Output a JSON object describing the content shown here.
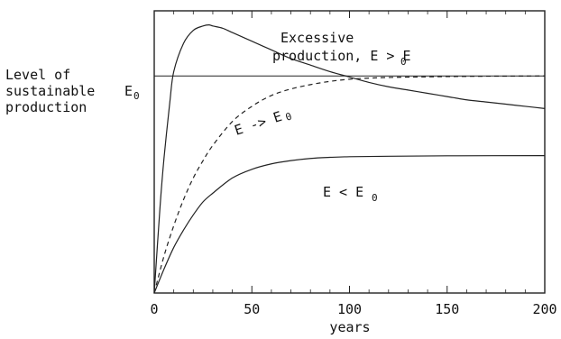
{
  "chart_data": {
    "type": "line",
    "xlabel": "years",
    "xlim": [
      0,
      200
    ],
    "ylim": [
      0,
      1.3
    ],
    "x_ticks": [
      0,
      50,
      100,
      150,
      200
    ],
    "x_tick_labels": [
      "0",
      "50",
      "100",
      "150",
      "200"
    ],
    "y_label_lines": [
      "Level of",
      "sustainable",
      "production"
    ],
    "y_reference": {
      "label": "E",
      "label_sub": "0",
      "value": 1.0
    },
    "series": [
      {
        "dash": "solid",
        "x": [
          0,
          3,
          5,
          8,
          10,
          15,
          20,
          25,
          28,
          30,
          35,
          40,
          50,
          60,
          70,
          80,
          90,
          100,
          110,
          120,
          130,
          140,
          150,
          160,
          170,
          180,
          190,
          200
        ],
        "y": [
          0.0,
          0.4,
          0.62,
          0.88,
          1.02,
          1.15,
          1.21,
          1.23,
          1.235,
          1.23,
          1.22,
          1.2,
          1.16,
          1.12,
          1.08,
          1.05,
          1.02,
          0.995,
          0.97,
          0.95,
          0.935,
          0.92,
          0.905,
          0.89,
          0.88,
          0.87,
          0.86,
          0.85
        ]
      },
      {
        "dash": "dashed",
        "x": [
          0,
          5,
          10,
          15,
          20,
          25,
          30,
          40,
          50,
          60,
          70,
          80,
          90,
          100,
          110,
          120,
          140,
          160,
          180,
          200
        ],
        "y": [
          0.0,
          0.17,
          0.31,
          0.43,
          0.53,
          0.61,
          0.68,
          0.79,
          0.86,
          0.91,
          0.94,
          0.96,
          0.975,
          0.985,
          0.99,
          0.993,
          0.996,
          0.998,
          0.999,
          1.0
        ]
      },
      {
        "dash": "solid",
        "x": [
          0,
          5,
          10,
          15,
          20,
          25,
          30,
          40,
          50,
          60,
          70,
          80,
          90,
          100,
          120,
          150,
          200
        ],
        "y": [
          0.0,
          0.11,
          0.21,
          0.29,
          0.36,
          0.42,
          0.46,
          0.53,
          0.57,
          0.595,
          0.61,
          0.62,
          0.625,
          0.628,
          0.63,
          0.632,
          0.633
        ]
      }
    ],
    "annotations": [
      {
        "id": "excessive",
        "line1": "Excessive",
        "line2_prefix": "production, E > E",
        "line2_sub": "0"
      },
      {
        "id": "approach",
        "text": "E -> E",
        "sub": "0"
      },
      {
        "id": "below",
        "text": "E < E",
        "sub": "0"
      }
    ]
  }
}
